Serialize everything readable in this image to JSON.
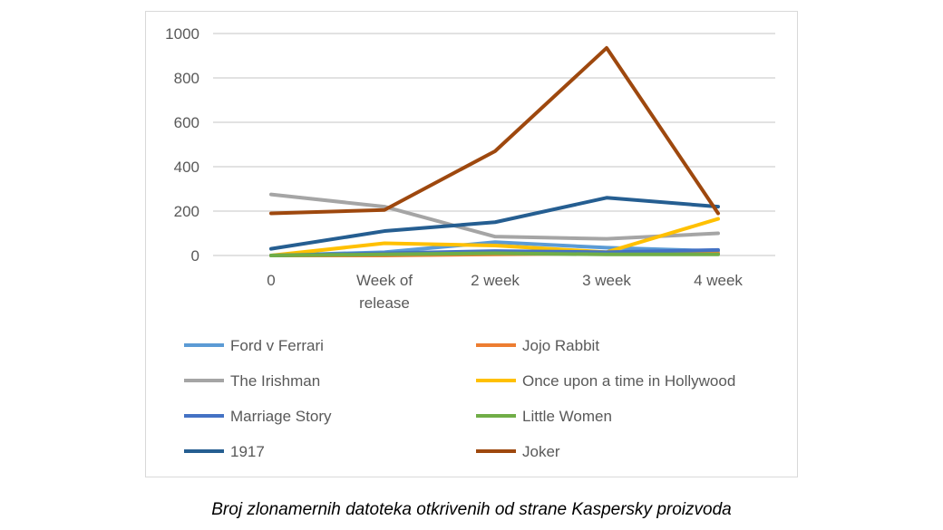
{
  "chart_data": {
    "type": "line",
    "title": "",
    "xlabel": "",
    "ylabel": "",
    "categories": [
      "0",
      "Week of release",
      "2 week",
      "3 week",
      "4 week"
    ],
    "ylim": [
      0,
      1000
    ],
    "yticks": [
      0,
      200,
      400,
      600,
      800,
      1000
    ],
    "grid": true,
    "legend_position": "bottom",
    "series": [
      {
        "name": "Ford v Ferrari",
        "color": "#5b9bd5",
        "values": [
          0,
          15,
          60,
          35,
          20
        ]
      },
      {
        "name": "Jojo Rabbit",
        "color": "#ed7d31",
        "values": [
          0,
          0,
          5,
          10,
          10
        ]
      },
      {
        "name": "The Irishman",
        "color": "#a5a5a5",
        "values": [
          275,
          220,
          85,
          75,
          100
        ]
      },
      {
        "name": "Once upon a time in Hollywood",
        "color": "#ffc000",
        "values": [
          0,
          55,
          45,
          15,
          165
        ]
      },
      {
        "name": "Marriage Story",
        "color": "#4472c4",
        "values": [
          0,
          10,
          20,
          15,
          25
        ]
      },
      {
        "name": "Little Women",
        "color": "#70ad47",
        "values": [
          0,
          5,
          10,
          5,
          5
        ]
      },
      {
        "name": "1917",
        "color": "#255e91",
        "values": [
          30,
          110,
          150,
          260,
          220
        ]
      },
      {
        "name": "Joker",
        "color": "#9e480e",
        "values": [
          190,
          205,
          470,
          935,
          190
        ]
      }
    ]
  },
  "caption": "Broj zlonamernih datoteka otkrivenih od strane Kaspersky proizvoda"
}
